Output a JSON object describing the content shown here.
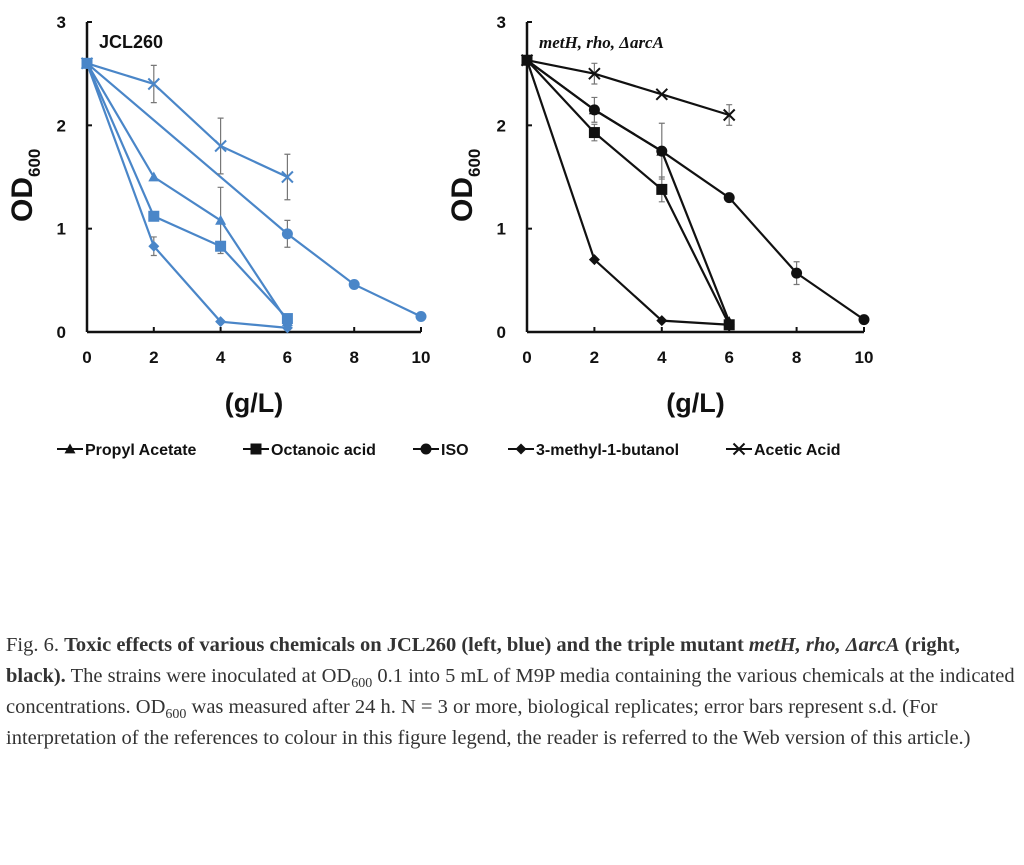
{
  "chart_data": [
    {
      "type": "line",
      "title": "JCL260",
      "xlabel": "(g/L)",
      "ylabel": "OD",
      "ylabel_sub": "600",
      "xlim": [
        0,
        10
      ],
      "ylim": [
        0,
        3
      ],
      "xticks": [
        "0",
        "2",
        "4",
        "6",
        "8",
        "10"
      ],
      "yticks": [
        "0",
        "1",
        "2",
        "3"
      ],
      "color": "#4a86c8",
      "series": [
        {
          "name": "Propyl Acetate",
          "marker": "triangle",
          "x": [
            0,
            2,
            4,
            6
          ],
          "y": [
            2.6,
            1.5,
            1.08,
            0.1
          ],
          "err": [
            0,
            0,
            0.32,
            0
          ]
        },
        {
          "name": "Octanoic acid",
          "marker": "square",
          "x": [
            0,
            2,
            4,
            6
          ],
          "y": [
            2.6,
            1.12,
            0.83,
            0.13
          ],
          "err": [
            0,
            0,
            0,
            0
          ]
        },
        {
          "name": "ISO",
          "marker": "circle",
          "x": [
            0,
            6,
            8,
            10
          ],
          "y": [
            2.6,
            0.95,
            0.46,
            0.15
          ],
          "err": [
            0,
            0.13,
            0,
            0
          ]
        },
        {
          "name": "3-methyl-1-butanol",
          "marker": "diamond",
          "x": [
            0,
            2,
            4,
            6
          ],
          "y": [
            2.6,
            0.83,
            0.1,
            0.04
          ],
          "err": [
            0,
            0.09,
            0,
            0
          ]
        },
        {
          "name": "Acetic Acid",
          "marker": "x",
          "x": [
            0,
            2,
            4,
            6
          ],
          "y": [
            2.6,
            2.4,
            1.8,
            1.5
          ],
          "err": [
            0,
            0.18,
            0.27,
            0.22
          ]
        }
      ]
    },
    {
      "type": "line",
      "title": "metH, rho, ΔarcA",
      "xlabel": "(g/L)",
      "ylabel": "OD",
      "ylabel_sub": "600",
      "xlim": [
        0,
        10
      ],
      "ylim": [
        0,
        3
      ],
      "xticks": [
        "0",
        "2",
        "4",
        "6",
        "8",
        "10"
      ],
      "yticks": [
        "0",
        "1",
        "2",
        "3"
      ],
      "color": "#111111",
      "series": [
        {
          "name": "Propyl Acetate",
          "marker": "triangle",
          "x": [
            0,
            2,
            4,
            6
          ],
          "y": [
            2.63,
            2.15,
            1.75,
            0.1
          ],
          "err": [
            0,
            0.12,
            0.27,
            0
          ]
        },
        {
          "name": "Octanoic acid",
          "marker": "square",
          "x": [
            0,
            2,
            4,
            6
          ],
          "y": [
            2.63,
            1.93,
            1.38,
            0.07
          ],
          "err": [
            0,
            0.08,
            0.12,
            0
          ]
        },
        {
          "name": "ISO",
          "marker": "circle",
          "x": [
            0,
            2,
            4,
            6,
            8,
            10
          ],
          "y": [
            2.63,
            2.15,
            1.75,
            1.3,
            0.57,
            0.12
          ],
          "err": [
            0,
            0,
            0,
            0,
            0.11,
            0
          ]
        },
        {
          "name": "3-methyl-1-butanol",
          "marker": "diamond",
          "x": [
            0,
            2,
            4,
            6
          ],
          "y": [
            2.63,
            0.7,
            0.11,
            0.07
          ],
          "err": [
            0,
            0,
            0,
            0
          ]
        },
        {
          "name": "Acetic Acid",
          "marker": "x",
          "x": [
            0,
            2,
            4,
            6
          ],
          "y": [
            2.63,
            2.5,
            2.3,
            2.1
          ],
          "err": [
            0,
            0.1,
            0,
            0.1
          ]
        }
      ]
    }
  ],
  "legend": [
    "Propyl Acetate",
    "Octanoic acid",
    "ISO",
    "3-methyl-1-butanol",
    "Acetic Acid"
  ],
  "caption": {
    "label": "Fig. 6. ",
    "bold1": "Toxic effects of various chemicals on JCL260 (left, blue) and the triple mutant ",
    "bold_italic": "metH, rho, ΔarcA",
    "bold2": " (right, black).",
    "t1": " The strains were inoculated at OD",
    "sub1": "600",
    "t2": " 0.1 into 5 mL of M9P media containing the various chemicals at the indicated concentrations. OD",
    "sub2": "600",
    "t3": " was measured after 24 h. N = 3 or more, biological replicates; error bars represent s.d. (For interpretation of the references to colour in this figure legend, the reader is referred to the Web version of this article.)"
  }
}
